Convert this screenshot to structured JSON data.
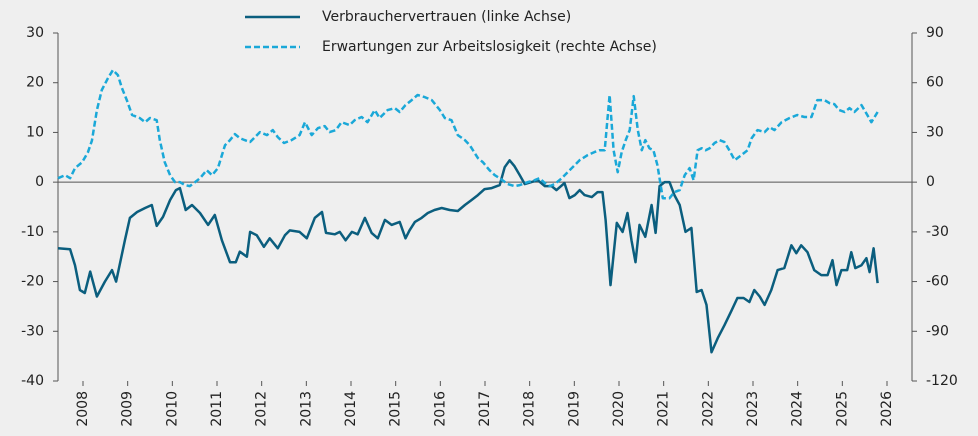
{
  "chart_data": {
    "type": "line",
    "xlim": [
      2007.44,
      2026.56
    ],
    "xticks": [
      2008,
      2009,
      2010,
      2011,
      2012,
      2013,
      2014,
      2015,
      2016,
      2017,
      2018,
      2019,
      2020,
      2021,
      2022,
      2023,
      2024,
      2025,
      2026
    ],
    "ylim": [
      -40,
      30
    ],
    "yticks": [
      -40,
      -30,
      -20,
      -10,
      0,
      10,
      20,
      30
    ],
    "y2lim": [
      -120,
      90
    ],
    "y2ticks": [
      -120,
      -90,
      -60,
      -30,
      0,
      30,
      60,
      90
    ],
    "series": [
      {
        "name": "Verbrauchervertrauen (linke Achse)",
        "color": "#0b5e7e",
        "line_style": "solid",
        "x": [
          2007.44,
          2007.71,
          2007.82,
          2007.93,
          2008.04,
          2008.16,
          2008.31,
          2008.49,
          2008.65,
          2008.74,
          2008.94,
          2009.05,
          2009.21,
          2009.39,
          2009.54,
          2009.65,
          2009.79,
          2009.95,
          2010.08,
          2010.17,
          2010.3,
          2010.44,
          2010.62,
          2010.8,
          2010.95,
          2011.11,
          2011.29,
          2011.42,
          2011.51,
          2011.67,
          2011.74,
          2011.89,
          2012.05,
          2012.18,
          2012.36,
          2012.52,
          2012.63,
          2012.85,
          2013.01,
          2013.19,
          2013.35,
          2013.44,
          2013.64,
          2013.75,
          2013.88,
          2014.02,
          2014.15,
          2014.31,
          2014.46,
          2014.6,
          2014.76,
          2014.91,
          2015.09,
          2015.22,
          2015.31,
          2015.43,
          2015.58,
          2015.72,
          2015.87,
          2016.03,
          2016.21,
          2016.39,
          2016.55,
          2016.7,
          2016.84,
          2016.99,
          2017.15,
          2017.33,
          2017.44,
          2017.55,
          2017.66,
          2017.78,
          2017.89,
          2018.04,
          2018.18,
          2018.34,
          2018.49,
          2018.6,
          2018.78,
          2018.89,
          2019.01,
          2019.12,
          2019.23,
          2019.39,
          2019.52,
          2019.63,
          2019.7,
          2019.81,
          2019.95,
          2020.08,
          2020.19,
          2020.28,
          2020.37,
          2020.46,
          2020.59,
          2020.73,
          2020.82,
          2020.91,
          2021.02,
          2021.13,
          2021.24,
          2021.36,
          2021.49,
          2021.62,
          2021.74,
          2021.85,
          2021.96,
          2022.07,
          2022.21,
          2022.36,
          2022.52,
          2022.65,
          2022.79,
          2022.92,
          2023.03,
          2023.15,
          2023.26,
          2023.41,
          2023.55,
          2023.7,
          2023.86,
          2023.97,
          2024.08,
          2024.22,
          2024.37,
          2024.53,
          2024.67,
          2024.78,
          2024.87,
          2024.98,
          2025.11,
          2025.2,
          2025.29,
          2025.43,
          2025.54,
          2025.61,
          2025.7,
          2025.79
        ],
        "values": [
          -13.3,
          -13.5,
          -16.7,
          -21.7,
          -22.3,
          -18,
          -23,
          -20,
          -17.7,
          -20,
          -11.6,
          -7.2,
          -6,
          -5.2,
          -4.6,
          -8.8,
          -7,
          -3.6,
          -1.6,
          -1.2,
          -5.6,
          -4.6,
          -6.2,
          -8.6,
          -6.6,
          -11.7,
          -16.1,
          -16.1,
          -14,
          -15,
          -10,
          -10.7,
          -13,
          -11.3,
          -13.3,
          -10.7,
          -9.7,
          -10,
          -11.3,
          -7.2,
          -6,
          -10.2,
          -10.5,
          -10,
          -11.7,
          -10,
          -10.5,
          -7.2,
          -10.2,
          -11.3,
          -7.6,
          -8.6,
          -8,
          -11.3,
          -9.7,
          -8,
          -7.2,
          -6.2,
          -5.6,
          -5.2,
          -5.6,
          -5.8,
          -4.6,
          -3.6,
          -2.6,
          -1.4,
          -1.2,
          -0.6,
          3,
          4.4,
          3.2,
          1.4,
          -0.4,
          0,
          0.4,
          -0.8,
          -0.8,
          -1.6,
          -0.2,
          -3.2,
          -2.6,
          -1.6,
          -2.6,
          -3,
          -2,
          -2,
          -7.6,
          -20.7,
          -8.2,
          -10,
          -6.2,
          -11.7,
          -16.1,
          -8.6,
          -11,
          -4.6,
          -10.2,
          -0.8,
          0,
          0,
          -2.6,
          -4.6,
          -10,
          -9.2,
          -22.1,
          -21.7,
          -24.7,
          -34.2,
          -31.4,
          -28.8,
          -25.8,
          -23.3,
          -23.3,
          -24.1,
          -21.7,
          -23,
          -24.7,
          -21.7,
          -17.7,
          -17.3,
          -12.7,
          -14.3,
          -12.7,
          -14.1,
          -17.7,
          -18.7,
          -18.7,
          -15.7,
          -20.7,
          -17.7,
          -17.7,
          -14.1,
          -17.3,
          -16.7,
          -15.3,
          -18.1,
          -13.3,
          -20.3
        ]
      },
      {
        "name": "Erwartungen zur Arbeitslosigkeit (rechte Achse)",
        "color": "#1aa8d8",
        "line_style": "dashed",
        "axis": "y2",
        "x": [
          2007.44,
          2007.6,
          2007.71,
          2007.82,
          2007.98,
          2008.11,
          2008.2,
          2008.31,
          2008.42,
          2008.56,
          2008.67,
          2008.78,
          2008.87,
          2008.98,
          2009.1,
          2009.27,
          2009.39,
          2009.5,
          2009.65,
          2009.72,
          2009.83,
          2009.95,
          2010.06,
          2010.17,
          2010.28,
          2010.39,
          2010.51,
          2010.62,
          2010.77,
          2010.89,
          2011.02,
          2011.18,
          2011.29,
          2011.4,
          2011.51,
          2011.62,
          2011.74,
          2011.85,
          2011.96,
          2012.12,
          2012.25,
          2012.36,
          2012.5,
          2012.67,
          2012.85,
          2012.97,
          2013.12,
          2013.26,
          2013.41,
          2013.52,
          2013.66,
          2013.79,
          2013.97,
          2014.08,
          2014.24,
          2014.37,
          2014.53,
          2014.64,
          2014.82,
          2014.98,
          2015.09,
          2015.22,
          2015.36,
          2015.49,
          2015.65,
          2015.81,
          2015.99,
          2016.1,
          2016.25,
          2016.39,
          2016.55,
          2016.66,
          2016.84,
          2016.95,
          2017.1,
          2017.22,
          2017.33,
          2017.51,
          2017.66,
          2017.78,
          2017.96,
          2018.11,
          2018.22,
          2018.34,
          2018.45,
          2018.56,
          2018.72,
          2018.85,
          2019.01,
          2019.12,
          2019.3,
          2019.45,
          2019.57,
          2019.68,
          2019.79,
          2019.88,
          2019.97,
          2020.06,
          2020.15,
          2020.24,
          2020.33,
          2020.42,
          2020.51,
          2020.59,
          2020.68,
          2020.77,
          2020.86,
          2020.98,
          2021.13,
          2021.24,
          2021.36,
          2021.47,
          2021.58,
          2021.67,
          2021.76,
          2021.85,
          2021.94,
          2022.03,
          2022.14,
          2022.25,
          2022.36,
          2022.47,
          2022.59,
          2022.74,
          2022.88,
          2022.97,
          2023.1,
          2023.26,
          2023.37,
          2023.48,
          2023.64,
          2023.82,
          2023.99,
          2024.15,
          2024.31,
          2024.44,
          2024.6,
          2024.71,
          2024.82,
          2024.93,
          2025.05,
          2025.16,
          2025.27,
          2025.43,
          2025.56,
          2025.65,
          2025.79
        ],
        "values": [
          2.4,
          4.2,
          2.4,
          8.5,
          12,
          18,
          25,
          43.5,
          55.6,
          62.8,
          67.6,
          64.6,
          56.8,
          49.5,
          40.5,
          38.7,
          36.2,
          38.7,
          37.4,
          25.4,
          12.1,
          4.2,
          0,
          0,
          -1.8,
          -2.4,
          0,
          2.4,
          7.2,
          4.2,
          8.5,
          22.3,
          25.4,
          29,
          26.6,
          25.4,
          24.2,
          27.2,
          30.2,
          28.4,
          31.4,
          27.2,
          23.6,
          25.4,
          28.4,
          36.2,
          28.4,
          32.6,
          33.8,
          30.2,
          31.4,
          36.2,
          34.4,
          37.4,
          39.3,
          36.2,
          43.5,
          38.7,
          43.5,
          44.7,
          42.3,
          46.5,
          49.5,
          52.6,
          51.3,
          49.5,
          43.5,
          38.7,
          37.4,
          28.4,
          25.4,
          22.3,
          14.5,
          12.1,
          7.2,
          4.2,
          2.4,
          -1.2,
          -2.4,
          -1.8,
          0,
          1.2,
          2.4,
          -0.6,
          -2.4,
          -1.2,
          2.4,
          6,
          10.3,
          13.3,
          16.3,
          18.1,
          19.3,
          19.3,
          52.6,
          19.3,
          6,
          18.1,
          25.4,
          31.4,
          51.9,
          31.4,
          19.3,
          25.4,
          20.5,
          19.3,
          10.3,
          -9.7,
          -9.7,
          -6,
          -4.8,
          4.2,
          8.5,
          1.2,
          19.3,
          20.5,
          19.3,
          20.5,
          23.6,
          25.4,
          24.2,
          19.3,
          13.3,
          16.3,
          19.3,
          26.6,
          31.4,
          30.2,
          33.2,
          31.4,
          36.2,
          38.7,
          40.5,
          39.3,
          39.3,
          49.5,
          49.5,
          47.7,
          47.1,
          43.5,
          42.3,
          44.7,
          42.3,
          46.5,
          40.5,
          36.2,
          42.3
        ]
      }
    ]
  }
}
